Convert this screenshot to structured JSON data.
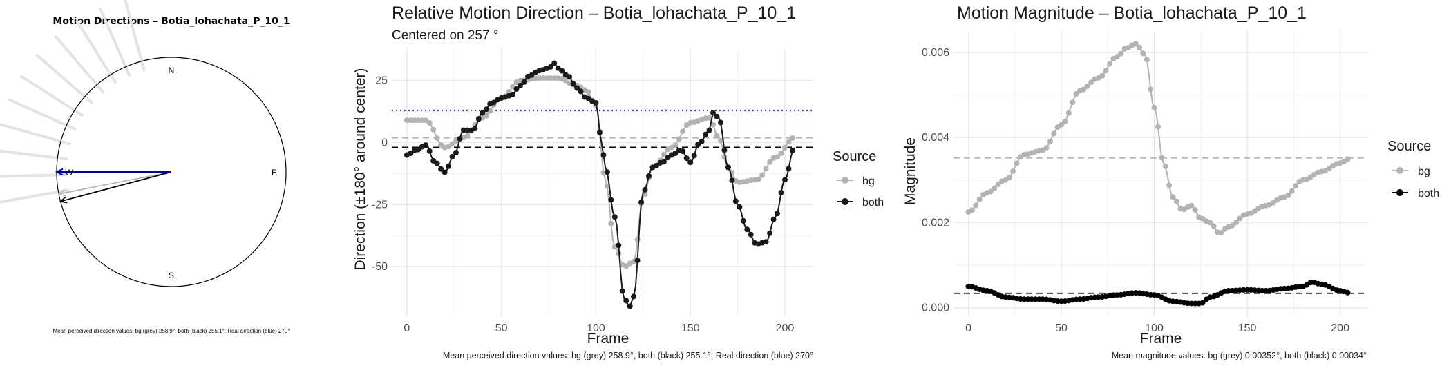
{
  "panel1": {
    "title": "Motion Directions – Botia_lohachata_P_10_1",
    "labels": {
      "n": "N",
      "e": "E",
      "s": "S",
      "w": "W"
    },
    "caption": "Mean perceived direction values: bg (grey) 258.9°, both (black) 255.1°; Real direction (blue) 270°",
    "colors": {
      "bg": "#b0b0b0",
      "both": "#000000",
      "real": "#0000bb",
      "rays": "#e3e3e3"
    }
  },
  "panel2": {
    "title": "Relative Motion Direction – Botia_lohachata_P_10_1",
    "subtitle": "Centered on  257 °",
    "caption": "Mean perceived direction values: bg (grey) 258.9°, both (black) 255.1°; Real direction (blue) 270°",
    "legend_title": "Source",
    "legend_items": [
      "bg",
      "both"
    ]
  },
  "panel3": {
    "title": "Motion Magnitude – Botia_lohachata_P_10_1",
    "caption": "Mean magnitude values: bg (grey) 0.00352°, both (black) 0.00034°",
    "legend_title": "Source",
    "legend_items": [
      "bg",
      "both"
    ]
  },
  "chart_data": [
    {
      "type": "scatter",
      "chart": "compass",
      "title": "Motion Directions – Botia_lohachata_P_10_1",
      "directions_deg": {
        "bg_mean": 258.9,
        "both_mean": 255.1,
        "real": 270
      },
      "labels": [
        "N",
        "E",
        "S",
        "W"
      ]
    },
    {
      "type": "line",
      "title": "Relative Motion Direction – Botia_lohachata_P_10_1",
      "subtitle": "Centered on  257 °",
      "xlabel": "Frame",
      "ylabel": "Direction (±180° around center)",
      "xlim": [
        -8,
        215
      ],
      "ylim": [
        -70,
        38
      ],
      "xticks": [
        0,
        50,
        100,
        150,
        200
      ],
      "yticks": [
        -50,
        -25,
        0,
        25
      ],
      "hlines": {
        "bg_mean": 1.9,
        "both_mean": -1.9,
        "real": 13
      },
      "legend": {
        "title": "Source",
        "position": "right"
      },
      "series": [
        {
          "name": "bg",
          "color": "#b3b3b3",
          "x": [
            0,
            10,
            20,
            30,
            40,
            50,
            60,
            70,
            80,
            90,
            95,
            100,
            105,
            110,
            115,
            120,
            125,
            130,
            140,
            150,
            160,
            165,
            170,
            175,
            185,
            195,
            205
          ],
          "y": [
            9,
            9,
            -2,
            2,
            10,
            18,
            25,
            26,
            26,
            23,
            21,
            15,
            -15,
            -42,
            -50,
            -48,
            -22,
            -10,
            -2,
            8,
            10,
            2,
            -10,
            -16,
            -15,
            -6,
            2
          ]
        },
        {
          "name": "both",
          "color": "#1a1a1a",
          "x": [
            0,
            5,
            10,
            15,
            20,
            25,
            30,
            35,
            40,
            45,
            50,
            55,
            60,
            65,
            70,
            75,
            78,
            80,
            85,
            90,
            95,
            100,
            103,
            105,
            110,
            115,
            118,
            120,
            125,
            130,
            135,
            140,
            145,
            150,
            155,
            160,
            162,
            165,
            170,
            175,
            180,
            185,
            190,
            195,
            200,
            205
          ],
          "y": [
            -5,
            -3,
            -1,
            -8,
            -12,
            -5,
            5,
            5,
            12,
            16,
            18,
            19,
            23,
            27,
            29,
            30,
            32,
            30,
            27,
            22,
            18,
            16,
            0,
            -10,
            -30,
            -63,
            -66,
            -62,
            -20,
            -10,
            -8,
            -5,
            -3,
            -8,
            0,
            5,
            12,
            10,
            -10,
            -25,
            -35,
            -41,
            -40,
            -30,
            -15,
            -2
          ]
        }
      ]
    },
    {
      "type": "line",
      "title": "Motion Magnitude – Botia_lohachata_P_10_1",
      "xlabel": "Frame",
      "ylabel": "Magnitude",
      "xlim": [
        -8,
        215
      ],
      "ylim": [
        -0.0002,
        0.0065
      ],
      "xticks": [
        0,
        50,
        100,
        150,
        200
      ],
      "yticks": [
        0.0,
        0.002,
        0.004,
        0.006
      ],
      "hlines": {
        "bg_mean": 0.00352,
        "both_mean": 0.00034
      },
      "legend": {
        "title": "Source",
        "position": "right"
      },
      "series": [
        {
          "name": "bg",
          "color": "#b3b3b3",
          "x": [
            0,
            10,
            20,
            30,
            40,
            50,
            60,
            70,
            80,
            85,
            90,
            95,
            100,
            105,
            110,
            115,
            120,
            125,
            130,
            135,
            140,
            150,
            160,
            170,
            180,
            190,
            200,
            205
          ],
          "y": [
            0.00225,
            0.0027,
            0.003,
            0.0036,
            0.0037,
            0.0043,
            0.0051,
            0.0054,
            0.0059,
            0.0061,
            0.0062,
            0.00595,
            0.0047,
            0.0034,
            0.0026,
            0.0023,
            0.0024,
            0.0021,
            0.002,
            0.00175,
            0.0019,
            0.0022,
            0.0024,
            0.0026,
            0.003,
            0.0032,
            0.0034,
            0.0035
          ]
        },
        {
          "name": "both",
          "color": "#000000",
          "x": [
            0,
            10,
            20,
            30,
            40,
            50,
            60,
            70,
            80,
            90,
            100,
            110,
            120,
            125,
            130,
            140,
            150,
            160,
            170,
            180,
            185,
            190,
            200,
            205
          ],
          "y": [
            0.0005,
            0.0004,
            0.00025,
            0.0002,
            0.0002,
            0.00015,
            0.0002,
            0.00025,
            0.0003,
            0.00035,
            0.0003,
            0.00015,
            0.0001,
            0.0001,
            0.00025,
            0.0004,
            0.00042,
            0.0004,
            0.00045,
            0.0005,
            0.0006,
            0.00055,
            0.0004,
            0.00035
          ]
        }
      ]
    }
  ]
}
